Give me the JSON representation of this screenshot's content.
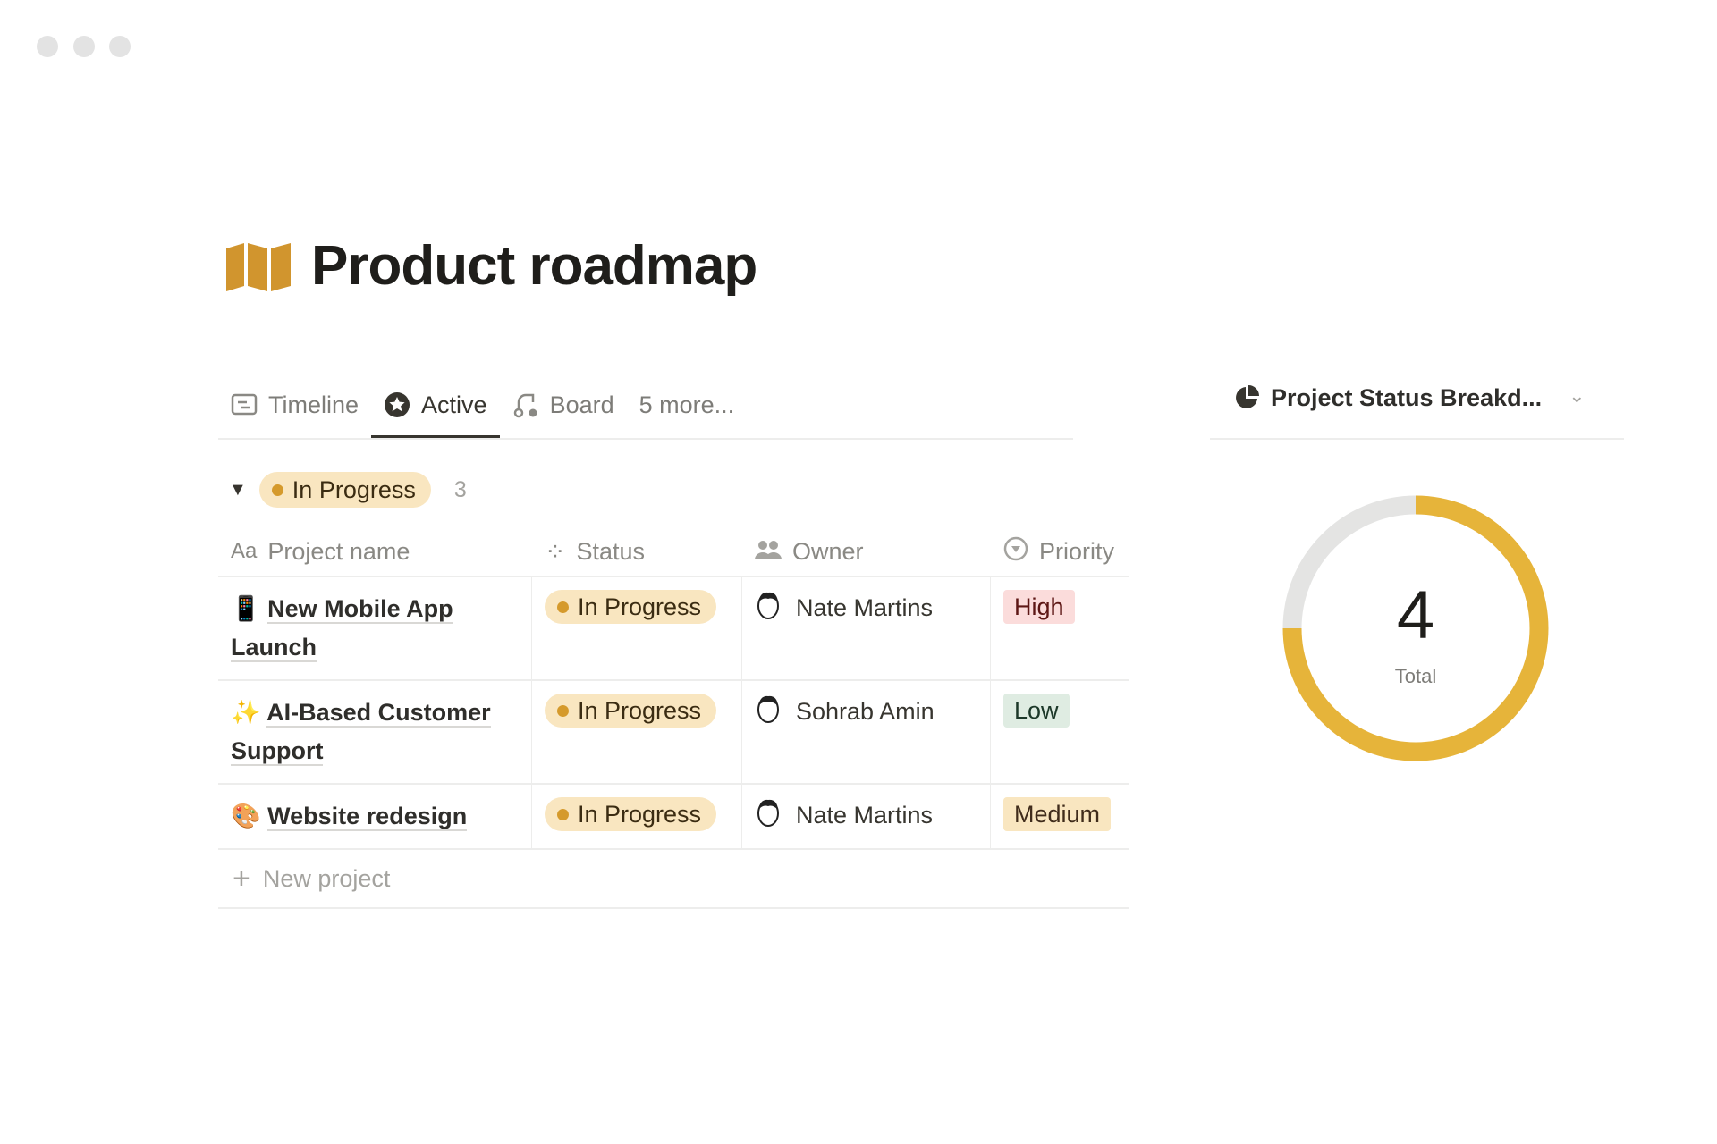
{
  "window": {
    "controls": [
      "close",
      "minimize",
      "maximize"
    ]
  },
  "page": {
    "title": "Product roadmap",
    "icon": "map-icon",
    "icon_color": "#d1952e"
  },
  "tabs": [
    {
      "label": "Timeline",
      "icon": "timeline-icon"
    },
    {
      "label": "Active",
      "icon": "star-icon",
      "active": true
    },
    {
      "label": "Board",
      "icon": "board-icon"
    },
    {
      "label": "5 more..."
    }
  ],
  "group": {
    "label": "In Progress",
    "count": "3"
  },
  "columns": {
    "name": "Project name",
    "status": "Status",
    "owner": "Owner",
    "priority": "Priority"
  },
  "rows": [
    {
      "icon": "📱",
      "name": "New Mobile App Launch",
      "status": "In Progress",
      "owner": "Nate Martins",
      "priority": "High",
      "priority_bg": "#fbdcdb",
      "priority_fg": "#5d1715"
    },
    {
      "icon": "✨",
      "name": "AI-Based Customer Support",
      "status": "In Progress",
      "owner": "Sohrab Amin",
      "priority": "Low",
      "priority_bg": "#dfece2",
      "priority_fg": "#1c3829"
    },
    {
      "icon": "🎨",
      "name": "Website redesign",
      "status": "In Progress",
      "owner": "Nate Martins",
      "priority": "Medium",
      "priority_bg": "#f9e6c0",
      "priority_fg": "#402c1b"
    }
  ],
  "new_row": {
    "label": "New project"
  },
  "chart_panel": {
    "title": "Project Status Breakd...",
    "icon": "pie-chart-icon"
  },
  "chart_data": {
    "type": "pie",
    "variant": "donut",
    "center_value": "4",
    "center_label": "Total",
    "values": [
      3,
      1
    ],
    "colors": [
      "#e6b43a",
      "#e4e4e3"
    ],
    "legend": "none"
  }
}
